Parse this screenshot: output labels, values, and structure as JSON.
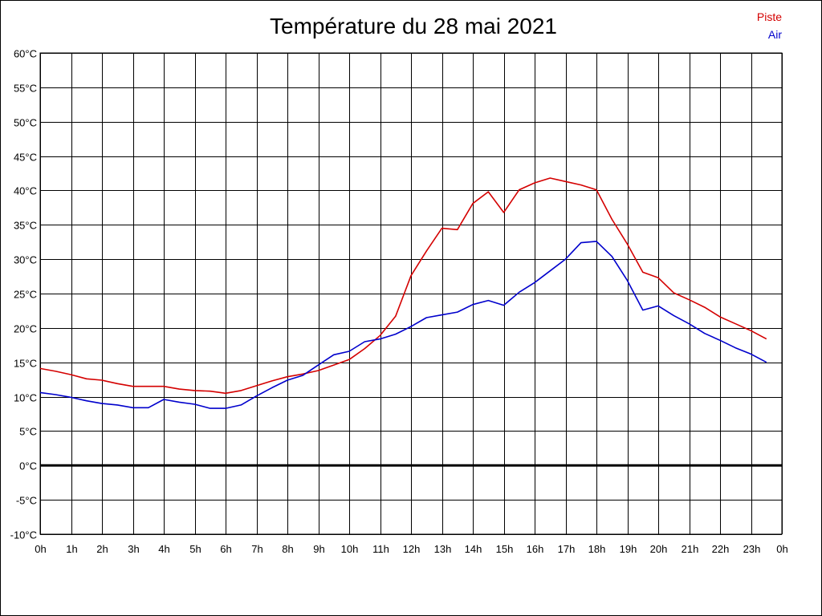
{
  "chart_data": {
    "type": "line",
    "title": "Température du 28 mai 2021",
    "xlabel": "",
    "ylabel": "",
    "ylim": [
      -10,
      60
    ],
    "xlim": [
      0,
      24
    ],
    "grid": true,
    "legend_position": "top-right",
    "x_tick_labels": [
      "0h",
      "1h",
      "2h",
      "3h",
      "4h",
      "5h",
      "6h",
      "7h",
      "8h",
      "9h",
      "10h",
      "11h",
      "12h",
      "13h",
      "14h",
      "15h",
      "16h",
      "17h",
      "18h",
      "19h",
      "20h",
      "21h",
      "22h",
      "23h",
      "0h"
    ],
    "y_tick_labels": [
      "-10°C",
      "-5°C",
      "0°C",
      "5°C",
      "10°C",
      "15°C",
      "20°C",
      "25°C",
      "30°C",
      "35°C",
      "40°C",
      "45°C",
      "50°C",
      "55°C",
      "60°C"
    ],
    "x": [
      0,
      0.5,
      1,
      1.5,
      2,
      2.5,
      3,
      3.5,
      4,
      4.5,
      5,
      5.5,
      6,
      6.5,
      7,
      7.5,
      8,
      8.5,
      9,
      9.5,
      10,
      10.5,
      11,
      11.5,
      12,
      12.5,
      13,
      13.5,
      14,
      14.5,
      15,
      15.5,
      16,
      16.5,
      17,
      17.5,
      18,
      18.5,
      19,
      19.5,
      20,
      20.5,
      21,
      21.5,
      22,
      22.5,
      23,
      23.5
    ],
    "series": [
      {
        "name": "Piste",
        "color": "#d40000",
        "values": [
          14.1,
          13.7,
          13.2,
          12.6,
          12.4,
          11.9,
          11.5,
          11.5,
          11.5,
          11.1,
          10.9,
          10.8,
          10.5,
          10.9,
          11.6,
          12.3,
          12.9,
          13.3,
          13.8,
          14.6,
          15.4,
          17.0,
          18.9,
          21.7,
          27.6,
          31.2,
          34.5,
          34.3,
          38.1,
          39.8,
          36.8,
          40.1,
          41.1,
          41.8,
          41.3,
          40.8,
          40.1,
          35.8,
          32.2,
          28.1,
          27.3,
          25.1,
          24.1,
          23.0,
          21.6,
          20.6,
          19.6,
          18.4
        ]
      },
      {
        "name": "Air",
        "color": "#0000cc",
        "values": [
          10.6,
          10.3,
          9.9,
          9.4,
          9.0,
          8.8,
          8.4,
          8.4,
          9.6,
          9.2,
          8.9,
          8.3,
          8.3,
          8.8,
          10.1,
          11.3,
          12.4,
          13.1,
          14.6,
          16.1,
          16.6,
          18.0,
          18.4,
          19.1,
          20.2,
          21.5,
          21.9,
          22.3,
          23.4,
          24.0,
          23.3,
          25.2,
          26.6,
          28.3,
          30.0,
          32.4,
          32.6,
          30.4,
          26.9,
          22.6,
          23.2,
          21.8,
          20.6,
          19.2,
          18.2,
          17.1,
          16.2,
          15.0
        ]
      }
    ]
  }
}
